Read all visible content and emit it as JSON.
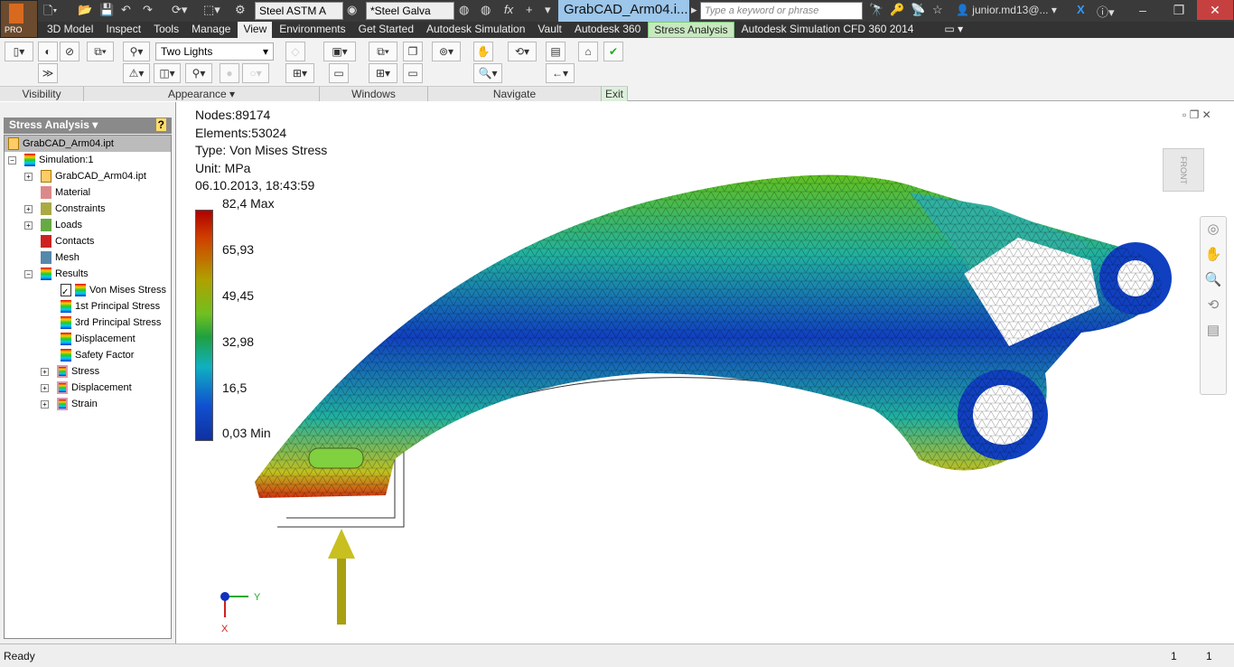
{
  "titlebar": {
    "material": "Steel ASTM A",
    "appearance": "*Steel Galva",
    "document_title": "GrabCAD_Arm04.i...",
    "search_placeholder": "Type a keyword or phrase",
    "user": "junior.md13@...",
    "app_badge": "PRO"
  },
  "menu": {
    "tabs": [
      "3D Model",
      "Inspect",
      "Tools",
      "Manage",
      "View",
      "Environments",
      "Get Started",
      "Autodesk Simulation",
      "Vault",
      "Autodesk 360",
      "Stress Analysis",
      "Autodesk Simulation CFD 360 2014"
    ],
    "active": "View"
  },
  "ribbon": {
    "lighting": "Two Lights",
    "panels": [
      "Visibility",
      "Appearance ▾",
      "Windows",
      "Navigate",
      "Exit"
    ]
  },
  "browser": {
    "title": "Stress Analysis ▾",
    "root": "GrabCAD_Arm04.ipt",
    "items": [
      {
        "label": "Simulation:1",
        "level": 1,
        "expander": "-"
      },
      {
        "label": "GrabCAD_Arm04.ipt",
        "level": 2,
        "expander": "+"
      },
      {
        "label": "Material",
        "level": 2,
        "expander": ""
      },
      {
        "label": "Constraints",
        "level": 2,
        "expander": "+"
      },
      {
        "label": "Loads",
        "level": 2,
        "expander": "+"
      },
      {
        "label": "Contacts",
        "level": 2,
        "expander": ""
      },
      {
        "label": "Mesh",
        "level": 2,
        "expander": ""
      },
      {
        "label": "Results",
        "level": 2,
        "expander": "-"
      },
      {
        "label": "Von Mises Stress",
        "level": 3,
        "expander": "",
        "checked": true
      },
      {
        "label": "1st Principal Stress",
        "level": 3,
        "expander": ""
      },
      {
        "label": "3rd Principal Stress",
        "level": 3,
        "expander": ""
      },
      {
        "label": "Displacement",
        "level": 3,
        "expander": ""
      },
      {
        "label": "Safety Factor",
        "level": 3,
        "expander": ""
      },
      {
        "label": "Stress",
        "level": 3,
        "expander": "+"
      },
      {
        "label": "Displacement",
        "level": 3,
        "expander": "+"
      },
      {
        "label": "Strain",
        "level": 3,
        "expander": "+"
      }
    ]
  },
  "viewport": {
    "nodes": "Nodes:89174",
    "elements": "Elements:53024",
    "type": "Type: Von Mises Stress",
    "unit": "Unit: MPa",
    "timestamp": "06.10.2013, 18:43:59",
    "legend": [
      "82,4 Max",
      "65,93",
      "49,45",
      "32,98",
      "16,5",
      "0,03 Min"
    ],
    "viewcube_label": "FRONT",
    "axis_y": "Y",
    "axis_x": "X"
  },
  "status": {
    "text": "Ready",
    "v1": "1",
    "v2": "1"
  }
}
